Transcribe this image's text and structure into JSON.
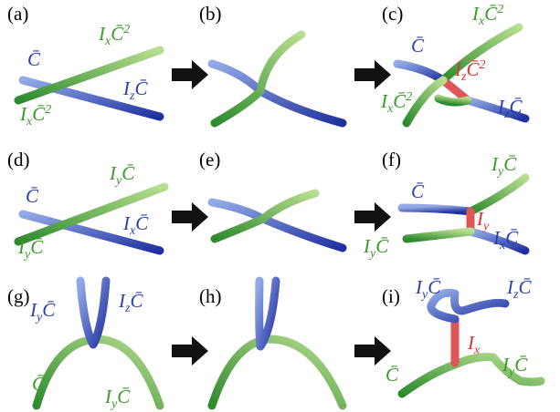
{
  "panels": [
    {
      "id": "(a)",
      "labels": [
        {
          "main": "C̄",
          "color": "#2a3fb0"
        },
        {
          "main": "I",
          "sub": "x",
          "tail": "C̄",
          "sup": "2",
          "color": "#3a9a2a"
        },
        {
          "main": "I",
          "sub": "z",
          "tail": "C̄",
          "color": "#2a3fb0"
        },
        {
          "main": "I",
          "sub": "x",
          "tail": "C̄",
          "sup": "2",
          "color": "#3a9a2a"
        }
      ]
    },
    {
      "id": "(b)",
      "labels": []
    },
    {
      "id": "(c)",
      "labels": [
        {
          "main": "C̄",
          "color": "#2a3fb0"
        },
        {
          "main": "I",
          "sub": "x",
          "tail": "C̄",
          "sup": "2",
          "color": "#3a9a2a"
        },
        {
          "main": "I",
          "sub": "z",
          "tail": "C̄",
          "sup": "2",
          "color": "#e03030"
        },
        {
          "main": "I",
          "sub": "x",
          "tail": "C̄",
          "sup": "2",
          "color": "#3a9a2a"
        },
        {
          "main": "I",
          "sub": "z",
          "tail": "C̄",
          "color": "#2a3fb0"
        }
      ]
    },
    {
      "id": "(d)",
      "labels": [
        {
          "main": "C̄",
          "color": "#2a3fb0"
        },
        {
          "main": "I",
          "sub": "y",
          "tail": "C̄",
          "color": "#3a9a2a"
        },
        {
          "main": "I",
          "sub": "x",
          "tail": "C̄",
          "color": "#2a3fb0"
        },
        {
          "main": "I",
          "sub": "y",
          "tail": "C̄",
          "color": "#3a9a2a"
        }
      ]
    },
    {
      "id": "(e)",
      "labels": []
    },
    {
      "id": "(f)",
      "labels": [
        {
          "main": "C̄",
          "color": "#2a3fb0"
        },
        {
          "main": "I",
          "sub": "y",
          "tail": "C̄",
          "color": "#3a9a2a"
        },
        {
          "main": "I",
          "sub": "y",
          "color": "#e03030"
        },
        {
          "main": "I",
          "sub": "x",
          "tail": "C̄",
          "color": "#2a3fb0"
        },
        {
          "main": "I",
          "sub": "y",
          "tail": "C̄",
          "color": "#3a9a2a"
        }
      ]
    },
    {
      "id": "(g)",
      "labels": [
        {
          "main": "I",
          "sub": "y",
          "tail": "C̄",
          "color": "#2a3fb0"
        },
        {
          "main": "I",
          "sub": "z",
          "tail": "C̄",
          "color": "#2a3fb0"
        },
        {
          "main": "C̄",
          "color": "#3a9a2a"
        },
        {
          "main": "I",
          "sub": "y",
          "tail": "C̄",
          "color": "#3a9a2a"
        }
      ]
    },
    {
      "id": "(h)",
      "labels": []
    },
    {
      "id": "(i)",
      "labels": [
        {
          "main": "I",
          "sub": "y",
          "tail": "C̄",
          "color": "#2a3fb0"
        },
        {
          "main": "I",
          "sub": "z",
          "tail": "C̄",
          "color": "#2a3fb0"
        },
        {
          "main": "I",
          "sub": "x",
          "color": "#e03030"
        },
        {
          "main": "I",
          "sub": "y",
          "tail": "C̄",
          "color": "#3a9a2a"
        },
        {
          "main": "C̄",
          "color": "#3a9a2a"
        }
      ]
    }
  ]
}
